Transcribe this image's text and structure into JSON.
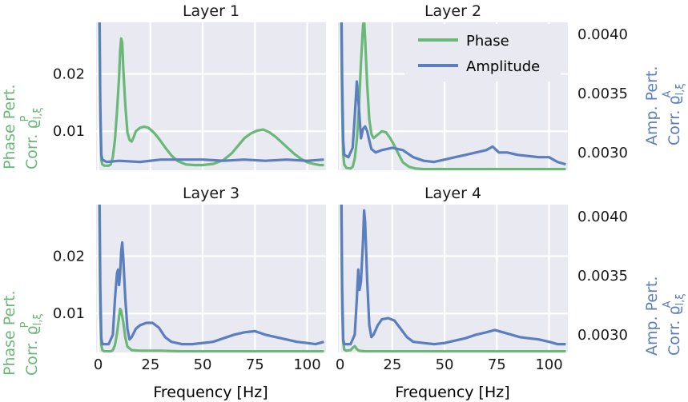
{
  "colors": {
    "phase": "#6ab877",
    "amplitude": "#5b7ebf",
    "panel_bg": "#e9e9f2",
    "grid": "#ffffff",
    "text": "#1a1a1a"
  },
  "legend": {
    "placement": "top-right of Layer 2",
    "phase_label": "Phase",
    "amplitude_label": "Amplitude"
  },
  "labels": {
    "xlabel": "Frequency [Hz]",
    "phase_ylabel_line1": "Phase Pert.",
    "phase_ylabel_line2": "Corr. ϱ",
    "phase_ylabel_sup": "P",
    "phase_ylabel_sub": "l,ξ",
    "amp_ylabel_line1": "Amp. Pert.",
    "amp_ylabel_line2": "Corr. ϱ",
    "amp_ylabel_sup": "A",
    "amp_ylabel_sub": "l,ξ"
  },
  "chart_data": {
    "type": "line",
    "grid": true,
    "xlim": [
      -1,
      109
    ],
    "xticks": [
      0,
      25,
      50,
      75,
      100
    ],
    "y_phase_lim": [
      0.0032,
      0.029
    ],
    "y_phase_ticks": [
      0.01,
      0.02
    ],
    "y_amp_lim": [
      0.00285,
      0.0041
    ],
    "y_amp_ticks": [
      0.003,
      0.0035,
      0.004
    ],
    "panels": [
      {
        "title": "Layer 1",
        "phase": [
          [
            0,
            0.03
          ],
          [
            0.5,
            0.03
          ],
          [
            1,
            0.012
          ],
          [
            1.5,
            0.005
          ],
          [
            2,
            0.0042
          ],
          [
            3,
            0.004
          ],
          [
            5,
            0.004
          ],
          [
            6,
            0.0042
          ],
          [
            7,
            0.0055
          ],
          [
            8,
            0.0085
          ],
          [
            9,
            0.0135
          ],
          [
            10,
            0.0195
          ],
          [
            10.5,
            0.024
          ],
          [
            11,
            0.0262
          ],
          [
            11.5,
            0.0255
          ],
          [
            12,
            0.021
          ],
          [
            13,
            0.0145
          ],
          [
            14,
            0.0098
          ],
          [
            15,
            0.0085
          ],
          [
            16,
            0.0082
          ],
          [
            17,
            0.009
          ],
          [
            18,
            0.01
          ],
          [
            20,
            0.0106
          ],
          [
            22,
            0.0108
          ],
          [
            24,
            0.0106
          ],
          [
            26,
            0.01
          ],
          [
            28,
            0.0092
          ],
          [
            30,
            0.0082
          ],
          [
            32,
            0.0072
          ],
          [
            35,
            0.0058
          ],
          [
            38,
            0.0048
          ],
          [
            42,
            0.0042
          ],
          [
            46,
            0.0041
          ],
          [
            50,
            0.0041
          ],
          [
            55,
            0.0043
          ],
          [
            60,
            0.005
          ],
          [
            64,
            0.0062
          ],
          [
            67,
            0.0075
          ],
          [
            70,
            0.0088
          ],
          [
            73,
            0.0096
          ],
          [
            76,
            0.0101
          ],
          [
            79,
            0.0103
          ],
          [
            82,
            0.0098
          ],
          [
            85,
            0.009
          ],
          [
            88,
            0.008
          ],
          [
            91,
            0.007
          ],
          [
            94,
            0.006
          ],
          [
            97,
            0.0052
          ],
          [
            100,
            0.0046
          ],
          [
            103,
            0.0043
          ],
          [
            106,
            0.0041
          ],
          [
            108,
            0.0041
          ]
        ],
        "amplitude": [
          [
            0,
            0.0045
          ],
          [
            0.5,
            0.0045
          ],
          [
            1,
            0.0034
          ],
          [
            1.5,
            0.00298
          ],
          [
            2,
            0.00294
          ],
          [
            4,
            0.00292
          ],
          [
            10,
            0.00293
          ],
          [
            20,
            0.00292
          ],
          [
            30,
            0.00294
          ],
          [
            40,
            0.00294
          ],
          [
            50,
            0.00294
          ],
          [
            60,
            0.00293
          ],
          [
            70,
            0.00294
          ],
          [
            80,
            0.00293
          ],
          [
            90,
            0.00294
          ],
          [
            100,
            0.00293
          ],
          [
            108,
            0.00294
          ]
        ]
      },
      {
        "title": "Layer 2",
        "phase": [
          [
            0,
            0.03
          ],
          [
            0.5,
            0.03
          ],
          [
            1,
            0.014
          ],
          [
            1.5,
            0.006
          ],
          [
            2,
            0.0042
          ],
          [
            3,
            0.0036
          ],
          [
            5,
            0.0035
          ],
          [
            6,
            0.0038
          ],
          [
            7,
            0.0052
          ],
          [
            8,
            0.0085
          ],
          [
            9,
            0.014
          ],
          [
            10,
            0.022
          ],
          [
            11,
            0.0285
          ],
          [
            11.5,
            0.0295
          ],
          [
            12,
            0.026
          ],
          [
            13,
            0.018
          ],
          [
            14,
            0.012
          ],
          [
            15,
            0.0095
          ],
          [
            16,
            0.0088
          ],
          [
            18,
            0.0094
          ],
          [
            20,
            0.01
          ],
          [
            22,
            0.0098
          ],
          [
            24,
            0.0088
          ],
          [
            26,
            0.0075
          ],
          [
            28,
            0.006
          ],
          [
            30,
            0.0046
          ],
          [
            33,
            0.0038
          ],
          [
            36,
            0.0035
          ],
          [
            40,
            0.0034
          ],
          [
            50,
            0.0034
          ],
          [
            60,
            0.0034
          ],
          [
            70,
            0.0034
          ],
          [
            80,
            0.0034
          ],
          [
            90,
            0.0034
          ],
          [
            100,
            0.0034
          ],
          [
            108,
            0.0034
          ]
        ],
        "amplitude": [
          [
            0,
            0.0045
          ],
          [
            0.5,
            0.0045
          ],
          [
            1,
            0.0036
          ],
          [
            1.5,
            0.0031
          ],
          [
            2,
            0.00298
          ],
          [
            4,
            0.00296
          ],
          [
            6,
            0.00304
          ],
          [
            7,
            0.0033
          ],
          [
            8,
            0.0036
          ],
          [
            9,
            0.00338
          ],
          [
            10,
            0.00312
          ],
          [
            11,
            0.0032
          ],
          [
            12,
            0.00322
          ],
          [
            13,
            0.00318
          ],
          [
            14,
            0.0031
          ],
          [
            15,
            0.00303
          ],
          [
            17,
            0.003
          ],
          [
            20,
            0.00302
          ],
          [
            25,
            0.00304
          ],
          [
            30,
            0.00302
          ],
          [
            35,
            0.00296
          ],
          [
            40,
            0.00293
          ],
          [
            45,
            0.00292
          ],
          [
            50,
            0.00294
          ],
          [
            55,
            0.00296
          ],
          [
            60,
            0.00298
          ],
          [
            65,
            0.003
          ],
          [
            70,
            0.00302
          ],
          [
            73,
            0.00305
          ],
          [
            76,
            0.003
          ],
          [
            80,
            0.003
          ],
          [
            85,
            0.00298
          ],
          [
            90,
            0.00297
          ],
          [
            95,
            0.00296
          ],
          [
            100,
            0.00296
          ],
          [
            104,
            0.00292
          ],
          [
            108,
            0.0029
          ]
        ]
      },
      {
        "title": "Layer 3",
        "phase": [
          [
            0,
            0.03
          ],
          [
            0.5,
            0.03
          ],
          [
            1,
            0.01
          ],
          [
            1.5,
            0.0045
          ],
          [
            2,
            0.0036
          ],
          [
            3,
            0.0034
          ],
          [
            6,
            0.0034
          ],
          [
            7,
            0.0036
          ],
          [
            8,
            0.0045
          ],
          [
            9,
            0.0065
          ],
          [
            10,
            0.0095
          ],
          [
            10.5,
            0.0108
          ],
          [
            11,
            0.0105
          ],
          [
            12,
            0.0085
          ],
          [
            13,
            0.0058
          ],
          [
            14,
            0.0042
          ],
          [
            16,
            0.0036
          ],
          [
            20,
            0.0035
          ],
          [
            30,
            0.0035
          ],
          [
            40,
            0.0034
          ],
          [
            50,
            0.0034
          ],
          [
            60,
            0.0034
          ],
          [
            70,
            0.0034
          ],
          [
            80,
            0.0034
          ],
          [
            90,
            0.0034
          ],
          [
            100,
            0.0034
          ],
          [
            108,
            0.0034
          ]
        ],
        "amplitude": [
          [
            0,
            0.0045
          ],
          [
            0.5,
            0.0045
          ],
          [
            1,
            0.0034
          ],
          [
            1.5,
            0.00297
          ],
          [
            2,
            0.00292
          ],
          [
            5,
            0.00292
          ],
          [
            7,
            0.003
          ],
          [
            8,
            0.0033
          ],
          [
            9,
            0.00352
          ],
          [
            9.5,
            0.00355
          ],
          [
            10,
            0.00342
          ],
          [
            10.5,
            0.00352
          ],
          [
            11,
            0.0037
          ],
          [
            11.5,
            0.00378
          ],
          [
            12,
            0.00365
          ],
          [
            13,
            0.0033
          ],
          [
            14,
            0.00305
          ],
          [
            15,
            0.00296
          ],
          [
            16,
            0.00298
          ],
          [
            18,
            0.00305
          ],
          [
            20,
            0.00308
          ],
          [
            23,
            0.0031
          ],
          [
            26,
            0.0031
          ],
          [
            29,
            0.00306
          ],
          [
            32,
            0.00298
          ],
          [
            35,
            0.00294
          ],
          [
            40,
            0.00292
          ],
          [
            45,
            0.00292
          ],
          [
            50,
            0.00293
          ],
          [
            55,
            0.00294
          ],
          [
            60,
            0.00297
          ],
          [
            65,
            0.003
          ],
          [
            70,
            0.00302
          ],
          [
            75,
            0.00303
          ],
          [
            80,
            0.003
          ],
          [
            85,
            0.00298
          ],
          [
            90,
            0.00296
          ],
          [
            95,
            0.00294
          ],
          [
            100,
            0.00293
          ],
          [
            104,
            0.00292
          ],
          [
            108,
            0.00294
          ]
        ]
      },
      {
        "title": "Layer 4",
        "phase": [
          [
            0,
            0.03
          ],
          [
            0.5,
            0.03
          ],
          [
            1,
            0.011
          ],
          [
            1.5,
            0.005
          ],
          [
            2,
            0.0037
          ],
          [
            3,
            0.0035
          ],
          [
            5,
            0.0036
          ],
          [
            6,
            0.004
          ],
          [
            7,
            0.0043
          ],
          [
            8,
            0.0038
          ],
          [
            9,
            0.0035
          ],
          [
            12,
            0.0034
          ],
          [
            20,
            0.0034
          ],
          [
            30,
            0.0034
          ],
          [
            40,
            0.0034
          ],
          [
            50,
            0.0034
          ],
          [
            60,
            0.0034
          ],
          [
            70,
            0.0034
          ],
          [
            80,
            0.0034
          ],
          [
            90,
            0.0034
          ],
          [
            100,
            0.0034
          ],
          [
            108,
            0.0034
          ]
        ],
        "amplitude": [
          [
            0,
            0.0045
          ],
          [
            0.5,
            0.0045
          ],
          [
            1,
            0.0034
          ],
          [
            1.5,
            0.00296
          ],
          [
            2,
            0.00292
          ],
          [
            5,
            0.00292
          ],
          [
            7,
            0.003
          ],
          [
            8,
            0.0033
          ],
          [
            8.7,
            0.00355
          ],
          [
            9.3,
            0.00338
          ],
          [
            10,
            0.00345
          ],
          [
            11,
            0.0038
          ],
          [
            11.5,
            0.00405
          ],
          [
            12,
            0.00395
          ],
          [
            13,
            0.00345
          ],
          [
            14,
            0.00308
          ],
          [
            15,
            0.00298
          ],
          [
            16,
            0.003
          ],
          [
            18,
            0.00308
          ],
          [
            20,
            0.00313
          ],
          [
            23,
            0.00314
          ],
          [
            26,
            0.00312
          ],
          [
            29,
            0.00305
          ],
          [
            32,
            0.00298
          ],
          [
            35,
            0.00294
          ],
          [
            40,
            0.00293
          ],
          [
            45,
            0.00292
          ],
          [
            50,
            0.00293
          ],
          [
            55,
            0.00295
          ],
          [
            60,
            0.00297
          ],
          [
            65,
            0.003
          ],
          [
            70,
            0.00302
          ],
          [
            74,
            0.00304
          ],
          [
            78,
            0.00302
          ],
          [
            82,
            0.003
          ],
          [
            86,
            0.00298
          ],
          [
            90,
            0.00297
          ],
          [
            95,
            0.00296
          ],
          [
            100,
            0.00294
          ],
          [
            104,
            0.00292
          ],
          [
            108,
            0.00292
          ]
        ]
      }
    ]
  }
}
